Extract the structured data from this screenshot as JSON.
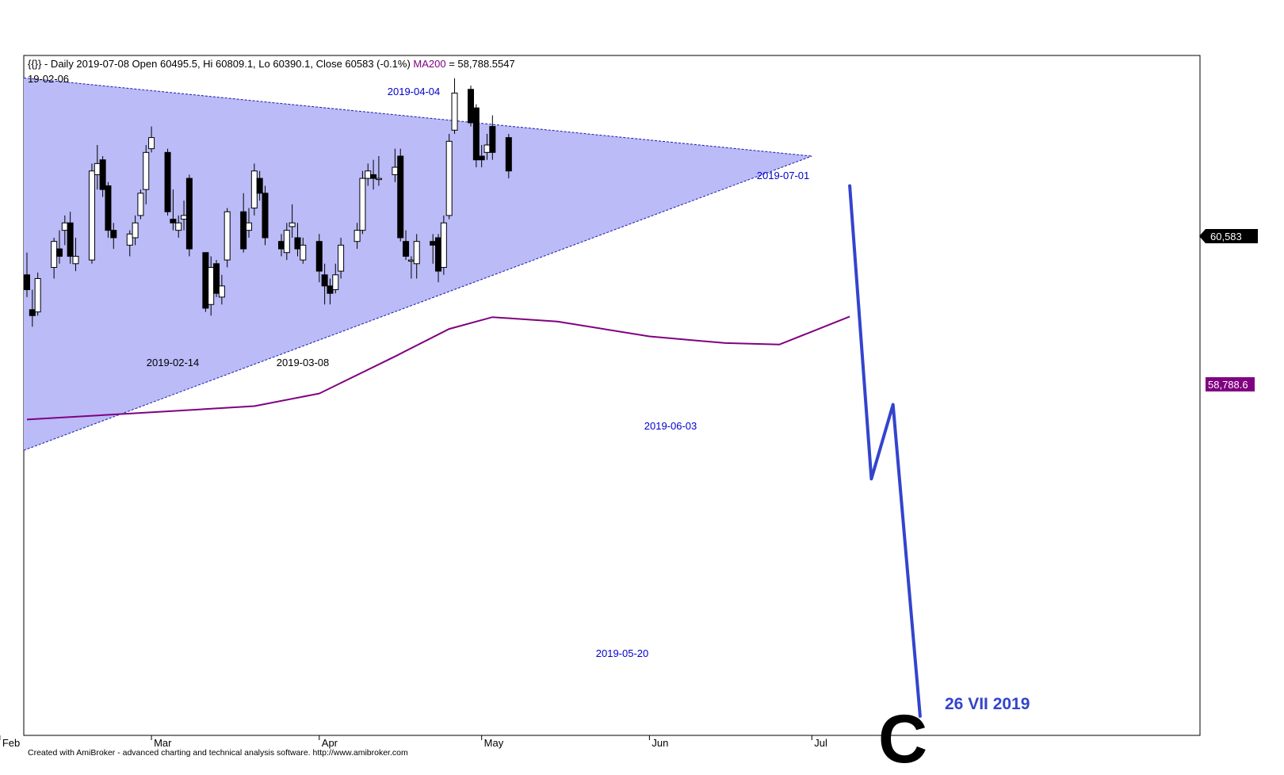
{
  "header": {
    "ticker": "{{}}",
    "info": " - Daily 2019-07-08 Open 60495.5, Hi 60809.1, Lo 60390.1, Close 60583 (-0.1%) ",
    "ma_label": "MA200",
    "ma_value": " = 58,788.5547",
    "start_date": "19-02-06"
  },
  "footer": {
    "credit": "Created with AmiBroker - advanced charting and technical analysis software. http://www.amibroker.com"
  },
  "price_badge": "60,583",
  "ma_badge": "58,788.6",
  "wave_label": "C",
  "target_date_label": "26 VII 2019",
  "chart_data": {
    "type": "candlestick",
    "colors": {
      "triangle_fill": "#babbf7",
      "triangle_line": "#1a1aaa",
      "ma200": "#800080",
      "projection": "#3344cc",
      "annotation": "#0000cc",
      "candle": "#000000",
      "badge_price_bg": "#000000",
      "badge_ma_bg": "#800080"
    },
    "y_range": [
      52800,
      62200
    ],
    "x_range": [
      "2019-02-06",
      "2019-07-26"
    ],
    "months": [
      {
        "label": "Feb",
        "date": "2019-02-01"
      },
      {
        "label": "Mar",
        "date": "2019-03-01"
      },
      {
        "label": "Apr",
        "date": "2019-04-01"
      },
      {
        "label": "May",
        "date": "2019-05-01"
      },
      {
        "label": "Jun",
        "date": "2019-06-01"
      },
      {
        "label": "Jul",
        "date": "2019-07-01"
      }
    ],
    "annotations": [
      {
        "text": "2019-04-04",
        "color": "#0000cc"
      },
      {
        "text": "2019-07-01",
        "color": "#0000cc"
      },
      {
        "text": "2019-02-14",
        "color": "#000000"
      },
      {
        "text": "2019-03-08",
        "color": "#000000"
      },
      {
        "text": "2019-06-03",
        "color": "#0000cc"
      },
      {
        "text": "2019-05-20",
        "color": "#0000cc"
      }
    ],
    "triangle": {
      "upper": [
        [
          "2019-02-06",
          62000
        ],
        [
          "2019-07-01",
          60950
        ]
      ],
      "lower": [
        [
          "2019-02-06",
          57000
        ],
        [
          "2019-07-01",
          60950
        ]
      ]
    },
    "ma200": [
      [
        "2019-02-06",
        57400
      ],
      [
        "2019-02-25",
        57480
      ],
      [
        "2019-03-20",
        57580
      ],
      [
        "2019-04-01",
        57750
      ],
      [
        "2019-04-15",
        58250
      ],
      [
        "2019-04-25",
        58620
      ],
      [
        "2019-05-03",
        58780
      ],
      [
        "2019-05-15",
        58720
      ],
      [
        "2019-06-01",
        58520
      ],
      [
        "2019-06-15",
        58430
      ],
      [
        "2019-06-25",
        58410
      ],
      [
        "2019-07-08",
        58788.6
      ]
    ],
    "projection": [
      [
        "2019-07-08",
        60550
      ],
      [
        "2019-07-12",
        56600
      ],
      [
        "2019-07-16",
        57600
      ],
      [
        "2019-07-21",
        53400
      ]
    ],
    "candles": [
      {
        "d": "2019-02-06",
        "o": 59350,
        "h": 59650,
        "l": 59050,
        "c": 59150
      },
      {
        "d": "2019-02-07",
        "o": 58880,
        "h": 59150,
        "l": 58650,
        "c": 58800
      },
      {
        "d": "2019-02-08",
        "o": 58850,
        "h": 59380,
        "l": 58800,
        "c": 59300
      },
      {
        "d": "2019-02-11",
        "o": 59450,
        "h": 59850,
        "l": 59300,
        "c": 59800
      },
      {
        "d": "2019-02-12",
        "o": 59700,
        "h": 59950,
        "l": 59500,
        "c": 59600
      },
      {
        "d": "2019-02-13",
        "o": 59950,
        "h": 60150,
        "l": 59750,
        "c": 60050
      },
      {
        "d": "2019-02-14",
        "o": 60050,
        "h": 60200,
        "l": 59500,
        "c": 59600
      },
      {
        "d": "2019-02-15",
        "o": 59500,
        "h": 59850,
        "l": 59400,
        "c": 59600
      },
      {
        "d": "2019-02-18",
        "o": 59550,
        "h": 60850,
        "l": 59500,
        "c": 60750
      },
      {
        "d": "2019-02-19",
        "o": 60700,
        "h": 61100,
        "l": 60500,
        "c": 60850
      },
      {
        "d": "2019-02-20",
        "o": 60900,
        "h": 60950,
        "l": 60400,
        "c": 60500
      },
      {
        "d": "2019-02-21",
        "o": 60550,
        "h": 60600,
        "l": 59850,
        "c": 59950
      },
      {
        "d": "2019-02-22",
        "o": 59950,
        "h": 60050,
        "l": 59700,
        "c": 59850
      },
      {
        "d": "2019-02-25",
        "o": 59750,
        "h": 59950,
        "l": 59600,
        "c": 59900
      },
      {
        "d": "2019-02-26",
        "o": 59850,
        "h": 60150,
        "l": 59750,
        "c": 60050
      },
      {
        "d": "2019-02-27",
        "o": 60150,
        "h": 60500,
        "l": 60100,
        "c": 60450
      },
      {
        "d": "2019-02-28",
        "o": 60500,
        "h": 61100,
        "l": 60300,
        "c": 61000
      },
      {
        "d": "2019-03-01",
        "o": 61050,
        "h": 61350,
        "l": 61000,
        "c": 61200
      },
      {
        "d": "2019-03-04",
        "o": 61000,
        "h": 61050,
        "l": 60150,
        "c": 60200
      },
      {
        "d": "2019-03-05",
        "o": 60100,
        "h": 60500,
        "l": 59950,
        "c": 60050
      },
      {
        "d": "2019-03-06",
        "o": 59950,
        "h": 60150,
        "l": 59850,
        "c": 60050
      },
      {
        "d": "2019-03-07",
        "o": 60100,
        "h": 60350,
        "l": 59950,
        "c": 60150
      },
      {
        "d": "2019-03-08",
        "o": 60650,
        "h": 60700,
        "l": 59600,
        "c": 59700
      },
      {
        "d": "2019-03-11",
        "o": 59650,
        "h": 59650,
        "l": 58850,
        "c": 58900
      },
      {
        "d": "2019-03-12",
        "o": 58950,
        "h": 59600,
        "l": 58800,
        "c": 59450
      },
      {
        "d": "2019-03-13",
        "o": 59500,
        "h": 59550,
        "l": 59050,
        "c": 59100
      },
      {
        "d": "2019-03-14",
        "o": 59050,
        "h": 59350,
        "l": 58950,
        "c": 59200
      },
      {
        "d": "2019-03-15",
        "o": 59550,
        "h": 60250,
        "l": 59450,
        "c": 60200
      },
      {
        "d": "2019-03-18",
        "o": 60200,
        "h": 60450,
        "l": 59650,
        "c": 59700
      },
      {
        "d": "2019-03-19",
        "o": 59950,
        "h": 60250,
        "l": 59850,
        "c": 60050
      },
      {
        "d": "2019-03-20",
        "o": 60250,
        "h": 60850,
        "l": 60150,
        "c": 60750
      },
      {
        "d": "2019-03-21",
        "o": 60650,
        "h": 60750,
        "l": 60350,
        "c": 60450
      },
      {
        "d": "2019-03-22",
        "o": 60450,
        "h": 60550,
        "l": 59750,
        "c": 59850
      },
      {
        "d": "2019-03-25",
        "o": 59800,
        "h": 59900,
        "l": 59600,
        "c": 59700
      },
      {
        "d": "2019-03-26",
        "o": 59650,
        "h": 60050,
        "l": 59550,
        "c": 59950
      },
      {
        "d": "2019-03-27",
        "o": 60000,
        "h": 60300,
        "l": 59850,
        "c": 60050
      },
      {
        "d": "2019-03-28",
        "o": 59850,
        "h": 60050,
        "l": 59600,
        "c": 59700
      },
      {
        "d": "2019-03-29",
        "o": 59550,
        "h": 59850,
        "l": 59500,
        "c": 59750
      },
      {
        "d": "2019-04-01",
        "o": 59800,
        "h": 59900,
        "l": 59250,
        "c": 59400
      },
      {
        "d": "2019-04-02",
        "o": 59350,
        "h": 59500,
        "l": 58950,
        "c": 59200
      },
      {
        "d": "2019-04-03",
        "o": 59200,
        "h": 59300,
        "l": 58950,
        "c": 59100
      },
      {
        "d": "2019-04-04",
        "o": 59150,
        "h": 59500,
        "l": 59100,
        "c": 59350
      },
      {
        "d": "2019-04-05",
        "o": 59400,
        "h": 59850,
        "l": 59300,
        "c": 59750
      },
      {
        "d": "2019-04-08",
        "o": 59800,
        "h": 60050,
        "l": 59700,
        "c": 59950
      },
      {
        "d": "2019-04-09",
        "o": 59950,
        "h": 60750,
        "l": 59900,
        "c": 60650
      },
      {
        "d": "2019-04-10",
        "o": 60650,
        "h": 60850,
        "l": 60550,
        "c": 60750
      },
      {
        "d": "2019-04-11",
        "o": 60700,
        "h": 60900,
        "l": 60500,
        "c": 60650
      },
      {
        "d": "2019-04-12",
        "o": 60650,
        "h": 60950,
        "l": 60550,
        "c": 60650
      },
      {
        "d": "2019-04-15",
        "o": 60700,
        "h": 61050,
        "l": 60600,
        "c": 60800
      },
      {
        "d": "2019-04-16",
        "o": 60950,
        "h": 61050,
        "l": 59800,
        "c": 59850
      },
      {
        "d": "2019-04-17",
        "o": 59800,
        "h": 59950,
        "l": 59550,
        "c": 59600
      },
      {
        "d": "2019-04-18",
        "o": 59550,
        "h": 59600,
        "l": 59300,
        "c": 59550
      },
      {
        "d": "2019-04-19",
        "o": 59500,
        "h": 59900,
        "l": 59300,
        "c": 59800
      },
      {
        "d": "2019-04-22",
        "o": 59800,
        "h": 59900,
        "l": 59500,
        "c": 59750
      },
      {
        "d": "2019-04-23",
        "o": 59850,
        "h": 59900,
        "l": 59250,
        "c": 59400
      },
      {
        "d": "2019-04-24",
        "o": 59450,
        "h": 60150,
        "l": 59350,
        "c": 60050
      },
      {
        "d": "2019-04-25",
        "o": 60150,
        "h": 61250,
        "l": 60100,
        "c": 61150
      },
      {
        "d": "2019-04-26",
        "o": 61300,
        "h": 62000,
        "l": 61250,
        "c": 61800
      },
      {
        "d": "2019-04-29",
        "o": 61850,
        "h": 61900,
        "l": 61350,
        "c": 61400
      },
      {
        "d": "2019-04-30",
        "o": 61600,
        "h": 61650,
        "l": 60800,
        "c": 60900
      },
      {
        "d": "2019-05-01",
        "o": 60950,
        "h": 61100,
        "l": 60800,
        "c": 60900
      },
      {
        "d": "2019-05-02",
        "o": 61000,
        "h": 61250,
        "l": 60900,
        "c": 61100
      },
      {
        "d": "2019-05-03",
        "o": 61350,
        "h": 61500,
        "l": 60900,
        "c": 61000
      },
      {
        "d": "2019-05-06",
        "o": 61200,
        "h": 61250,
        "l": 60650,
        "c": 60750
      }
    ]
  }
}
